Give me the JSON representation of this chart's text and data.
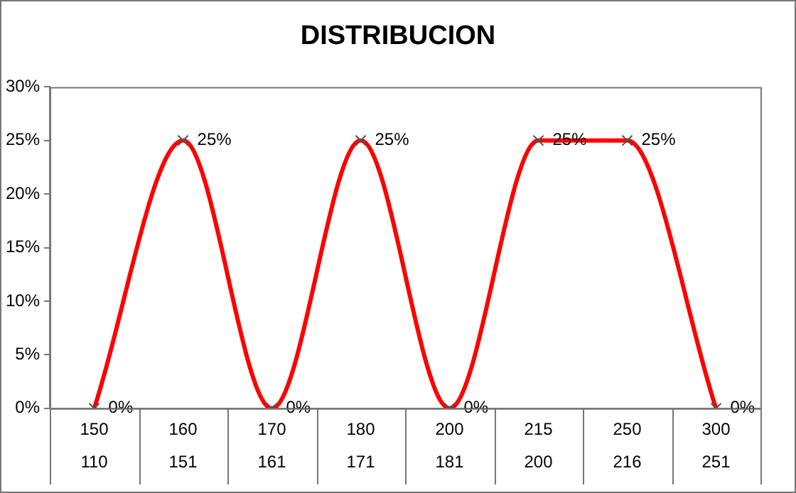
{
  "chart_data": {
    "type": "line",
    "title": "DISTRIBUCION",
    "categories": [
      "150\n110",
      "160\n151",
      "170\n161",
      "180\n171",
      "200\n181",
      "215\n200",
      "250\n216",
      "300\n251"
    ],
    "series": [
      {
        "color": "#ff0000",
        "values": [
          0,
          25,
          0,
          25,
          0,
          25,
          25,
          0
        ],
        "value_labels": [
          "0%",
          "25%",
          "0%",
          "25%",
          "0%",
          "25%",
          "25%",
          "0%"
        ]
      }
    ],
    "ylim": [
      0,
      30
    ],
    "yticks": [
      {
        "value": 0,
        "label": "0%"
      },
      {
        "value": 5,
        "label": "5%"
      },
      {
        "value": 10,
        "label": "10%"
      },
      {
        "value": 15,
        "label": "15%"
      },
      {
        "value": 20,
        "label": "20%"
      },
      {
        "value": 25,
        "label": "25%"
      },
      {
        "value": 30,
        "label": "30%"
      }
    ],
    "grid": false,
    "legend": false,
    "marker": "cross",
    "line_style": "solid"
  }
}
